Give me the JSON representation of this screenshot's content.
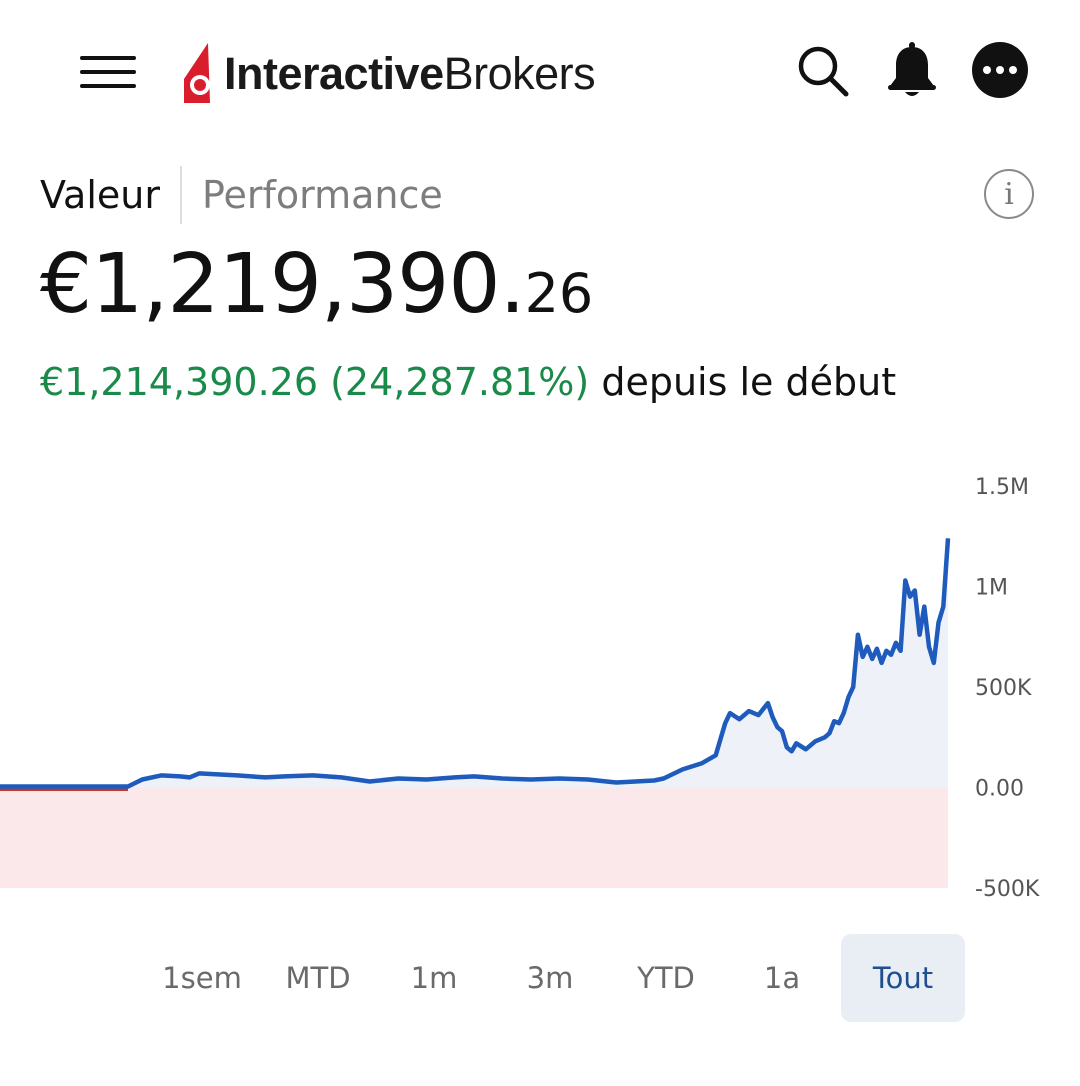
{
  "header": {
    "logo_bold": "Interactive",
    "logo_regular": "Brokers",
    "icons": [
      "menu-icon",
      "search-icon",
      "bell-icon",
      "more-icon"
    ]
  },
  "tabs": [
    {
      "label": "Valeur",
      "active": true
    },
    {
      "label": "Performance",
      "active": false
    }
  ],
  "info_label": "i",
  "account": {
    "value_main": "€1,219,390.",
    "value_cents": "26",
    "change": "€1,214,390.26 (24,287.81%)",
    "change_suffix": "depuis le début"
  },
  "colors": {
    "gain": "#1a8a4a",
    "line": "#1f5bbd",
    "positive_fill": "#eef2f8",
    "negative_fill": "#fbe8ea",
    "baseline_segment": "#c0392b",
    "logo_red": "#d81e2c",
    "range_active_bg": "#e9eef5",
    "range_active_text": "#1f4f91"
  },
  "chart_data": {
    "type": "area",
    "title": "",
    "xlabel": "",
    "ylabel": "",
    "ylim": [
      -500000,
      1500000
    ],
    "y_ticks": [
      "1.5M",
      "1M",
      "500K",
      "0.00",
      "-500K"
    ],
    "y_tick_values": [
      1500000,
      1000000,
      500000,
      0,
      -500000
    ],
    "grid": false,
    "legend": "none",
    "series": [
      {
        "x": [
          0,
          0.05,
          0.1,
          0.135,
          0.15,
          0.17,
          0.19,
          0.2,
          0.21,
          0.25,
          0.28,
          0.3,
          0.33,
          0.36,
          0.39,
          0.42,
          0.45,
          0.48,
          0.5,
          0.53,
          0.56,
          0.59,
          0.62,
          0.65,
          0.67,
          0.69,
          0.7,
          0.72,
          0.74,
          0.755,
          0.765,
          0.77,
          0.78,
          0.79,
          0.8,
          0.81,
          0.815,
          0.82,
          0.825,
          0.83,
          0.835,
          0.84,
          0.85,
          0.86,
          0.87,
          0.875,
          0.88,
          0.885,
          0.89,
          0.895,
          0.9,
          0.905,
          0.91,
          0.915,
          0.92,
          0.925,
          0.93,
          0.935,
          0.94,
          0.945,
          0.95,
          0.955,
          0.96,
          0.965,
          0.97,
          0.975,
          0.98,
          0.985,
          0.99,
          0.995,
          1.0
        ],
        "values": [
          5000,
          5000,
          5000,
          5000,
          40000,
          60000,
          55000,
          50000,
          70000,
          60000,
          50000,
          55000,
          60000,
          50000,
          30000,
          45000,
          40000,
          50000,
          55000,
          45000,
          40000,
          45000,
          40000,
          25000,
          30000,
          35000,
          45000,
          90000,
          120000,
          160000,
          320000,
          370000,
          340000,
          380000,
          360000,
          420000,
          350000,
          300000,
          280000,
          200000,
          180000,
          220000,
          190000,
          230000,
          250000,
          270000,
          330000,
          320000,
          370000,
          450000,
          500000,
          760000,
          650000,
          700000,
          640000,
          690000,
          620000,
          680000,
          660000,
          720000,
          680000,
          1030000,
          950000,
          980000,
          760000,
          900000,
          700000,
          620000,
          820000,
          900000,
          1240000
        ]
      }
    ]
  },
  "ranges": [
    {
      "label": "1sem",
      "active": false
    },
    {
      "label": "MTD",
      "active": false
    },
    {
      "label": "1m",
      "active": false
    },
    {
      "label": "3m",
      "active": false
    },
    {
      "label": "YTD",
      "active": false
    },
    {
      "label": "1a",
      "active": false
    },
    {
      "label": "Tout",
      "active": true
    }
  ]
}
